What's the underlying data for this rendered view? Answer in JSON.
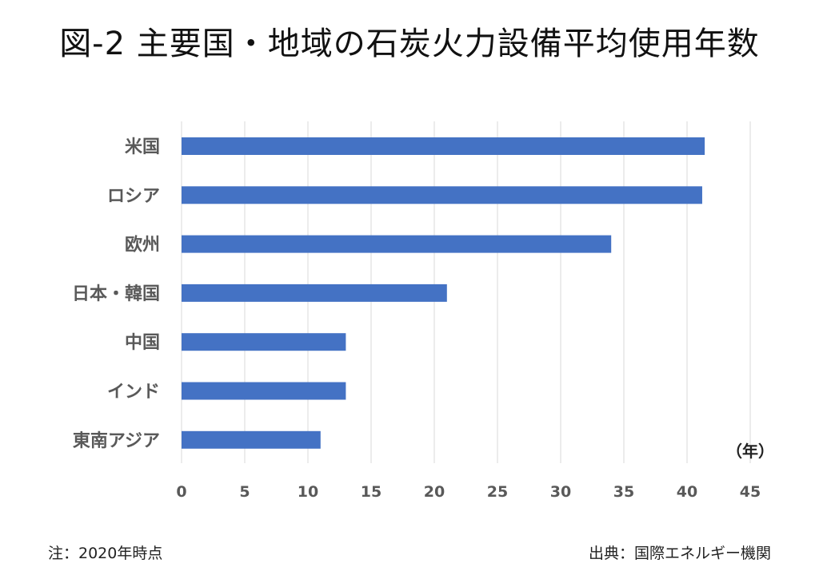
{
  "chart_data": {
    "type": "bar",
    "orientation": "horizontal",
    "title": "図-2 主要国・地域の石炭火力設備平均使用年数",
    "categories": [
      "米国",
      "ロシア",
      "欧州",
      "日本・韓国",
      "中国",
      "インド",
      "東南アジア"
    ],
    "values": [
      41.4,
      41.2,
      34.0,
      21.0,
      13.0,
      13.0,
      11.0
    ],
    "xlim": [
      0,
      45
    ],
    "xticks": [
      "0",
      "5",
      "10",
      "15",
      "20",
      "25",
      "30",
      "35",
      "40",
      "45"
    ],
    "xlabel": "（年）",
    "ylabel": "",
    "grid": true,
    "legend": "none",
    "bar_color": "#4472C4"
  },
  "footer": {
    "note": "注：2020年時点",
    "source": "出典：国際エネルギー機関"
  }
}
